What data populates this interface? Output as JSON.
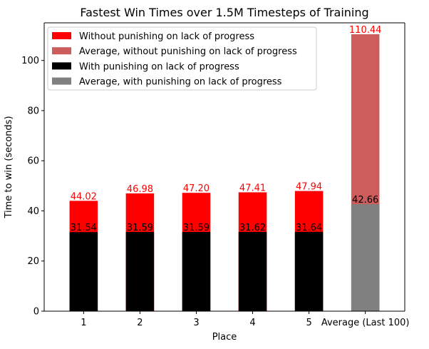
{
  "chart_data": {
    "type": "bar",
    "stacked_overlay": true,
    "title": "Fastest Win Times over 1.5M Timesteps of Training",
    "xlabel": "Place",
    "ylabel": "Time to win (seconds)",
    "ylim": [
      0,
      115
    ],
    "yticks": [
      0,
      20,
      40,
      60,
      80,
      100
    ],
    "categories": [
      "1",
      "2",
      "3",
      "4",
      "5",
      "Average (Last 100)"
    ],
    "series": [
      {
        "name": "Without punishing on lack of progress",
        "color": "#ff0000",
        "label_color": "#ff0000",
        "values": [
          44.02,
          46.98,
          47.2,
          47.41,
          47.94,
          null
        ],
        "labels": [
          "44.02",
          "46.98",
          "47.20",
          "47.41",
          "47.94",
          null
        ]
      },
      {
        "name": "Average, without punishing on lack of progress",
        "color": "#cd5c5c",
        "label_color": "#ff0000",
        "values": [
          null,
          null,
          null,
          null,
          null,
          110.44
        ],
        "labels": [
          null,
          null,
          null,
          null,
          null,
          "110.44"
        ]
      },
      {
        "name": "With punishing on lack of progress",
        "color": "#000000",
        "label_color": "#000000",
        "values": [
          31.54,
          31.59,
          31.59,
          31.62,
          31.64,
          null
        ],
        "labels": [
          "31.54",
          "31.59",
          "31.59",
          "31.62",
          "31.64",
          null
        ]
      },
      {
        "name": "Average, with punishing on lack of progress",
        "color": "#808080",
        "label_color": "#000000",
        "values": [
          null,
          null,
          null,
          null,
          null,
          42.66
        ],
        "labels": [
          null,
          null,
          null,
          null,
          null,
          "42.66"
        ]
      }
    ],
    "legend_position": "top-left",
    "grid": false
  }
}
